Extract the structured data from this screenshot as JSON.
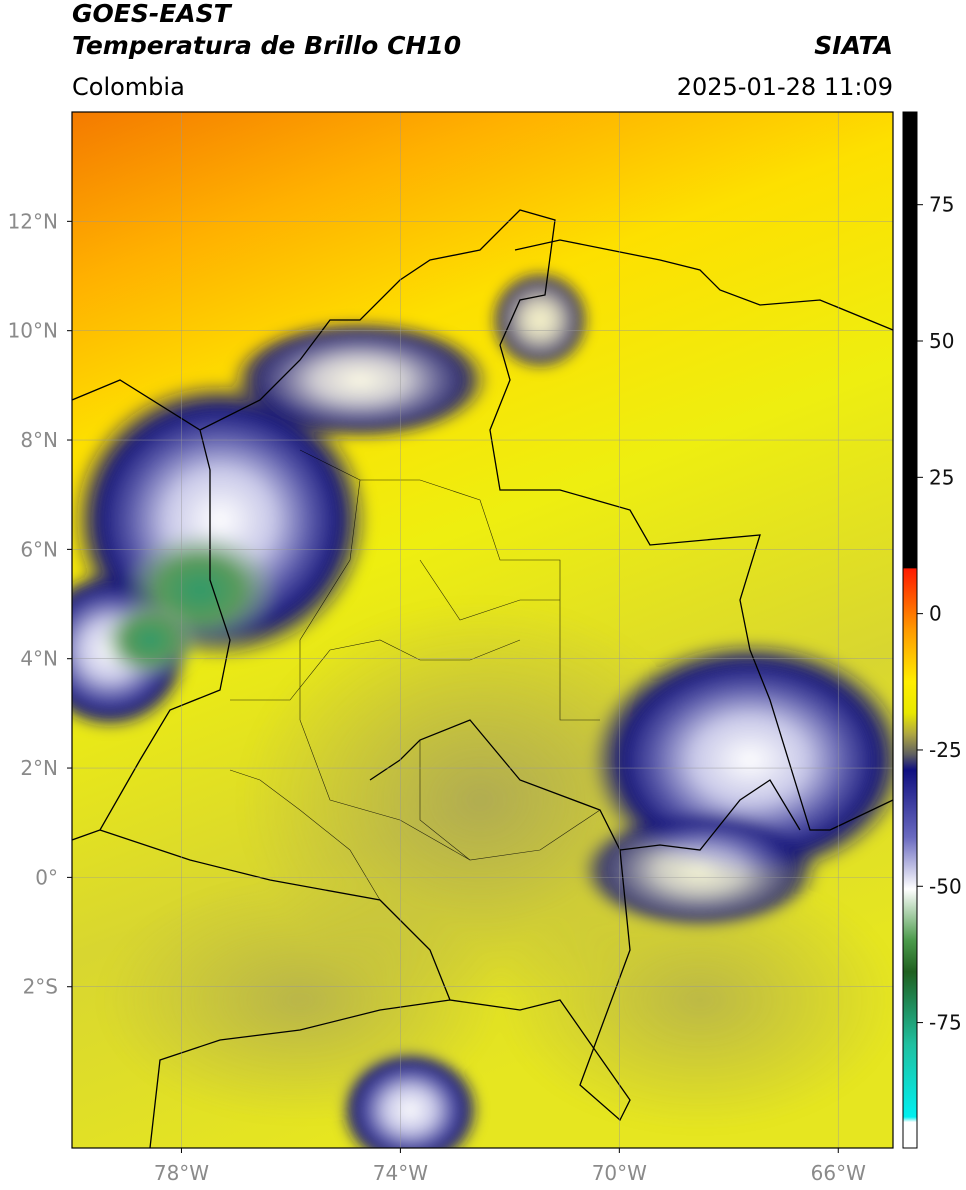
{
  "header": {
    "title": "GOES-EAST",
    "subtitle": "Temperatura de Brillo CH10",
    "source": "SIATA",
    "region": "Colombia",
    "datetime": "2025-01-28 11:09"
  },
  "map": {
    "type": "map",
    "xlim": [
      -80,
      -65
    ],
    "ylim": [
      -4.95,
      14
    ],
    "xticks": [
      {
        "value": -78,
        "label": "78°W"
      },
      {
        "value": -74,
        "label": "74°W"
      },
      {
        "value": -70,
        "label": "70°W"
      },
      {
        "value": -66,
        "label": "66°W"
      }
    ],
    "yticks": [
      {
        "value": 12,
        "label": "12°N"
      },
      {
        "value": 10,
        "label": "10°N"
      },
      {
        "value": 8,
        "label": "8°N"
      },
      {
        "value": 6,
        "label": "6°N"
      },
      {
        "value": 4,
        "label": "4°N"
      },
      {
        "value": 2,
        "label": "2°N"
      },
      {
        "value": 0,
        "label": "0°"
      },
      {
        "value": -2,
        "label": "2°S"
      }
    ],
    "grid": true
  },
  "colorbar": {
    "lim": [
      -98,
      92
    ],
    "ticks": [
      75,
      50,
      25,
      0,
      -25,
      -50,
      -75
    ]
  }
}
